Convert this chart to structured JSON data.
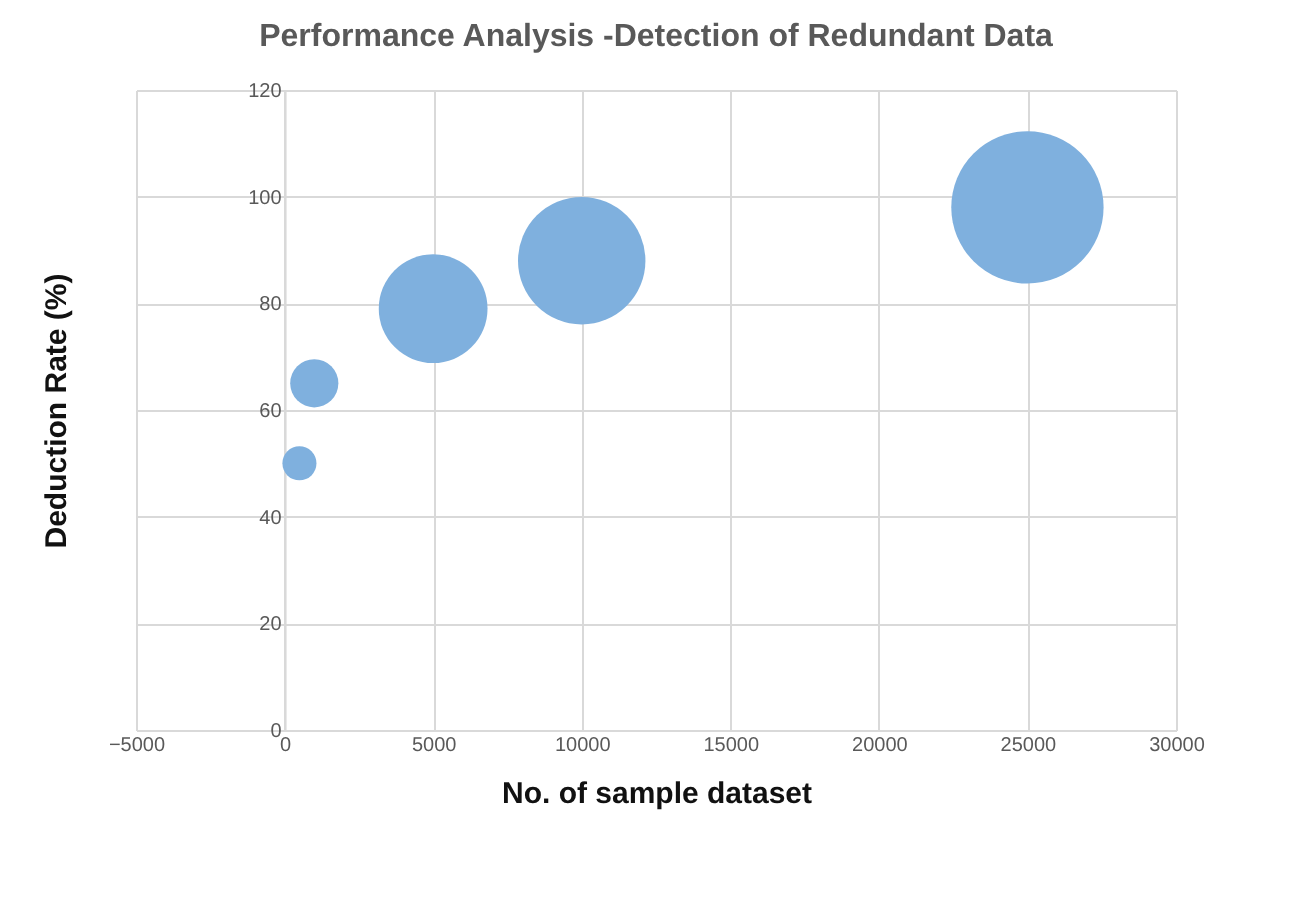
{
  "chart_data": {
    "type": "bubble",
    "title": "Performance Analysis -Detection of Redundant Data",
    "xlabel": "No. of sample dataset",
    "ylabel": "Deduction Rate (%)",
    "x": [
      500,
      1000,
      5000,
      10000,
      25000
    ],
    "series": [
      {
        "color": "#7fb0de",
        "values": [
          50,
          65,
          79,
          88,
          98
        ],
        "sizes": [
          0.05,
          0.1,
          0.51,
          0.7,
          1
        ]
      }
    ],
    "xlim": [
      -5000,
      30000
    ],
    "xticks": [
      -5000,
      0,
      5000,
      10000,
      15000,
      20000,
      25000,
      30000
    ],
    "ylim": [
      0,
      120
    ],
    "yticks": [
      0,
      20,
      40,
      60,
      80,
      100,
      120
    ],
    "grid": true,
    "legend": false
  }
}
